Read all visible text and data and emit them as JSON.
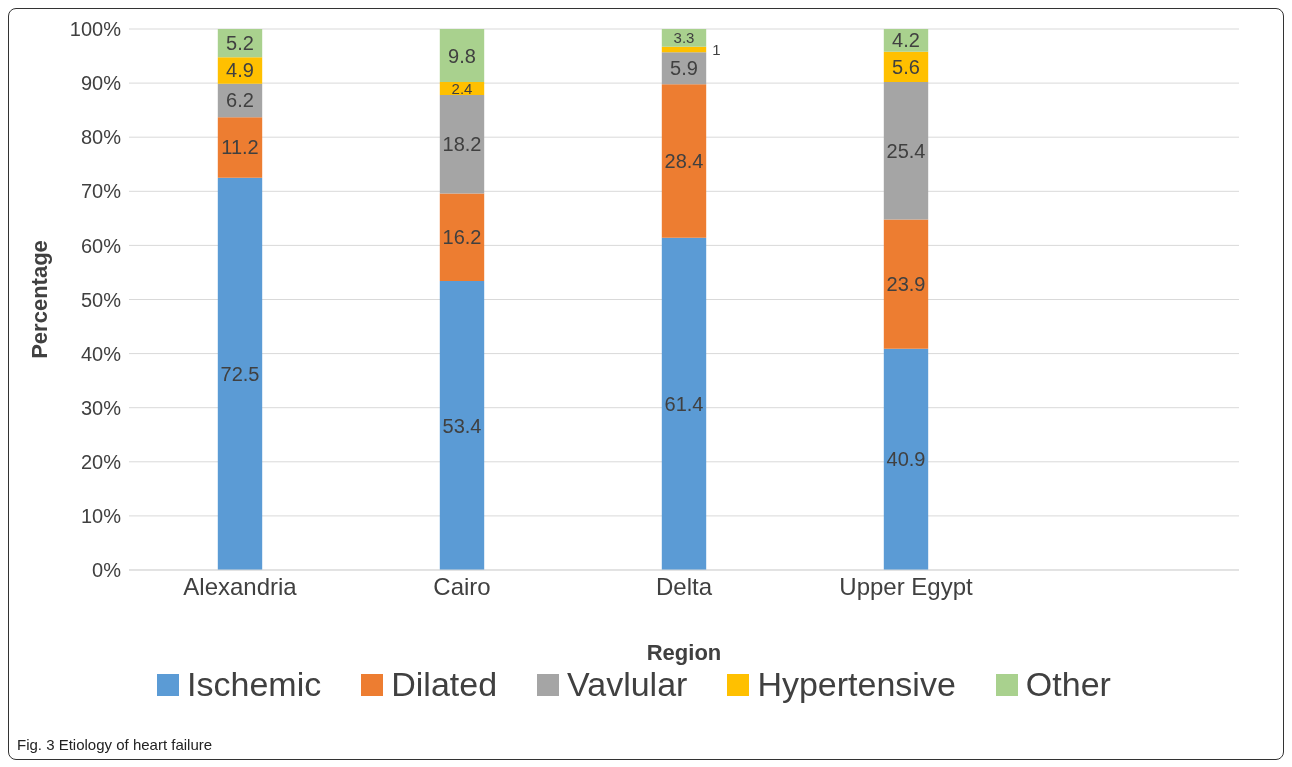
{
  "chart_data": {
    "type": "bar",
    "stacked": true,
    "xlabel": "Region",
    "ylabel": "Percentage",
    "categories": [
      "Alexandria",
      "Cairo",
      "Delta",
      "Upper Egypt",
      null
    ],
    "series": [
      {
        "name": "Ischemic",
        "color": "#5b9bd5",
        "values": [
          72.5,
          53.4,
          61.4,
          40.9,
          null
        ]
      },
      {
        "name": "Dilated",
        "color": "#ed7d31",
        "values": [
          11.2,
          16.2,
          28.4,
          23.9,
          null
        ]
      },
      {
        "name": "Vavlular",
        "color": "#a5a5a5",
        "values": [
          6.2,
          18.2,
          5.9,
          25.4,
          null
        ]
      },
      {
        "name": "Hypertensive",
        "color": "#ffc000",
        "values": [
          4.9,
          2.4,
          1,
          5.6,
          null
        ]
      },
      {
        "name": "Other",
        "color": "#a9d18e",
        "values": [
          5.2,
          9.8,
          3.3,
          4.2,
          null
        ]
      }
    ],
    "ylim": [
      0,
      100
    ],
    "yticks": [
      {
        "value": 0,
        "label": "0%"
      },
      {
        "value": 10,
        "label": "10%"
      },
      {
        "value": 20,
        "label": "20%"
      },
      {
        "value": 30,
        "label": "30%"
      },
      {
        "value": 40,
        "label": "40%"
      },
      {
        "value": 50,
        "label": "50%"
      },
      {
        "value": 60,
        "label": "60%"
      },
      {
        "value": 70,
        "label": "70%"
      },
      {
        "value": 80,
        "label": "80%"
      },
      {
        "value": 90,
        "label": "90%"
      },
      {
        "value": 100,
        "label": "100%"
      }
    ],
    "grid": "y",
    "legend": "bottom",
    "data_labels": true,
    "annotations": [
      "Fig. 3 Etiology of heart failure"
    ]
  }
}
